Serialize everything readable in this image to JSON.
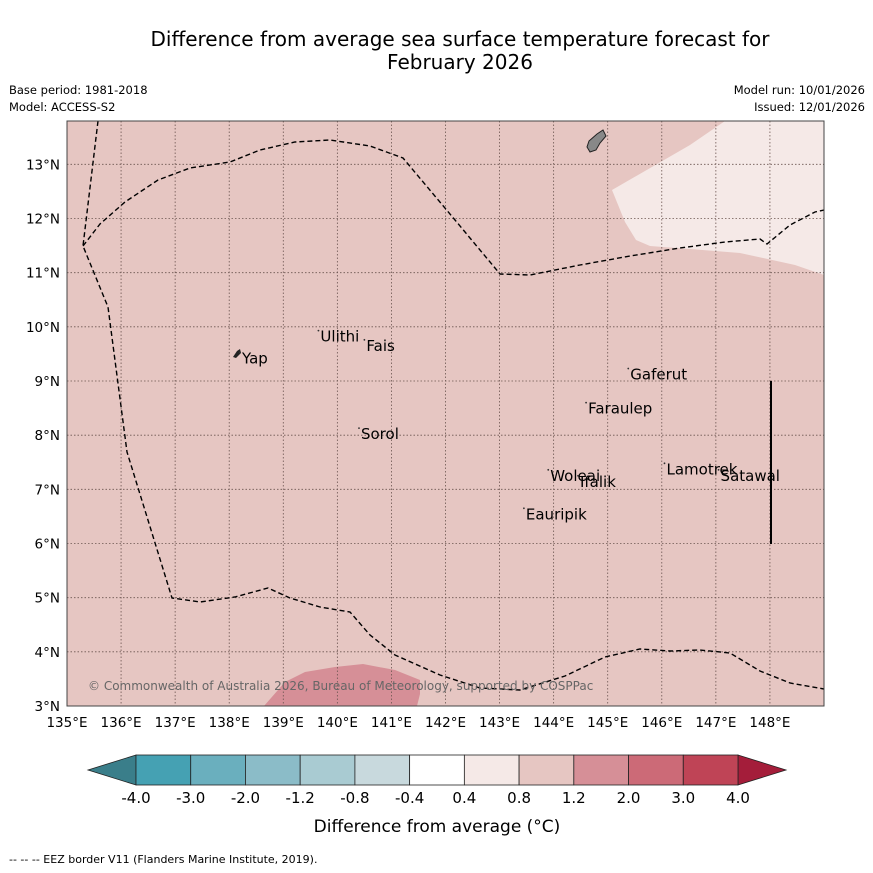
{
  "title": {
    "line1": "Difference from average sea surface temperature forecast for",
    "line2": "February 2026"
  },
  "meta": {
    "base_period": "Base period: 1981-2018",
    "model": "Model: ACCESS-S2",
    "model_run": "Model run: 10/01/2026",
    "issued": "Issued: 12/01/2026"
  },
  "map": {
    "lon_range": [
      135,
      149
    ],
    "lat_range": [
      3,
      13.8
    ],
    "lon_ticks": [
      "135°E",
      "136°E",
      "137°E",
      "138°E",
      "139°E",
      "140°E",
      "141°E",
      "142°E",
      "143°E",
      "144°E",
      "145°E",
      "146°E",
      "147°E",
      "148°E"
    ],
    "lat_ticks": [
      "3°N",
      "4°N",
      "5°N",
      "6°N",
      "7°N",
      "8°N",
      "9°N",
      "10°N",
      "11°N",
      "12°N",
      "13°N"
    ],
    "background_fill": "#e6c6c2",
    "copyright": "© Commonwealth of Australia 2026, Bureau of Meteorology, supported by COSPPac",
    "places": [
      {
        "name": "Ulithi",
        "lon": 139.65,
        "lat": 9.93
      },
      {
        "name": "Fais",
        "lon": 140.5,
        "lat": 9.76
      },
      {
        "name": "Yap",
        "lon": 138.2,
        "lat": 9.53
      },
      {
        "name": "Gaferut",
        "lon": 145.38,
        "lat": 9.23
      },
      {
        "name": "Faraulep",
        "lon": 144.6,
        "lat": 8.6
      },
      {
        "name": "Sorol",
        "lon": 140.4,
        "lat": 8.13
      },
      {
        "name": "Lamotrek",
        "lon": 146.05,
        "lat": 7.48
      },
      {
        "name": "Woleai",
        "lon": 143.9,
        "lat": 7.36
      },
      {
        "name": "Ifalik",
        "lon": 144.45,
        "lat": 7.25
      },
      {
        "name": "Satawal",
        "lon": 147.05,
        "lat": 7.36
      },
      {
        "name": "Eauripik",
        "lon": 143.45,
        "lat": 6.65
      }
    ]
  },
  "colorbar": {
    "ticks": [
      "-4.0",
      "-3.0",
      "-2.0",
      "-1.2",
      "-0.8",
      "-0.4",
      "0.4",
      "0.8",
      "1.2",
      "2.0",
      "3.0",
      "4.0"
    ],
    "colors": [
      "#45a1b3",
      "#6aafbe",
      "#8bbcc8",
      "#a9cbd2",
      "#c8d9dd",
      "#ffffff",
      "#f5e9e7",
      "#e6c6c2",
      "#d68f97",
      "#cc6a77",
      "#bf4456"
    ],
    "under_color": "#3a7e8a",
    "over_color": "#a41d3a",
    "label": "Difference from average (°C)"
  },
  "footer": "-- -- -- EEZ border V11 (Flanders Marine Institute, 2019)."
}
